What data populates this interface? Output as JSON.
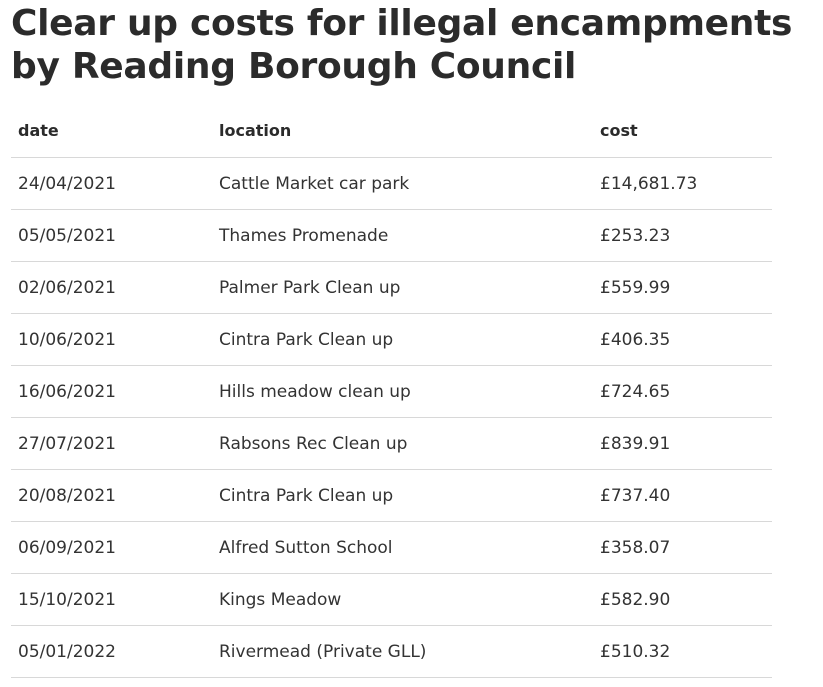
{
  "title": "Clear up costs for illegal encampments by Reading Borough Council",
  "table": {
    "headers": {
      "date": "date",
      "location": "location",
      "cost": "cost"
    },
    "rows": [
      {
        "date": "24/04/2021",
        "location": "Cattle Market car park",
        "cost": "£14,681.73"
      },
      {
        "date": "05/05/2021",
        "location": "Thames Promenade",
        "cost": "£253.23"
      },
      {
        "date": "02/06/2021",
        "location": "Palmer Park Clean up",
        "cost": "£559.99"
      },
      {
        "date": "10/06/2021",
        "location": "Cintra Park Clean up",
        "cost": "£406.35"
      },
      {
        "date": "16/06/2021",
        "location": "Hills meadow clean up",
        "cost": "£724.65"
      },
      {
        "date": "27/07/2021",
        "location": "Rabsons Rec Clean up",
        "cost": "£839.91"
      },
      {
        "date": "20/08/2021",
        "location": "Cintra Park Clean up",
        "cost": "£737.40"
      },
      {
        "date": "06/09/2021",
        "location": "Alfred Sutton School",
        "cost": "£358.07"
      },
      {
        "date": "15/10/2021",
        "location": "Kings Meadow",
        "cost": "£582.90"
      },
      {
        "date": "05/01/2022",
        "location": "Rivermead (Private GLL)",
        "cost": "£510.32"
      }
    ]
  }
}
